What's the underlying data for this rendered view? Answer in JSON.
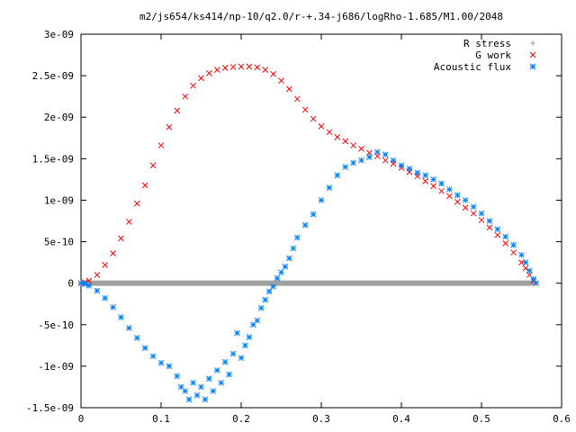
{
  "chart_data": {
    "type": "scatter",
    "title": "m2/js654/ks414/np-10/q2.0/r-+.34-j686/logRho-1.685/M1.00/2048",
    "xlabel": "",
    "ylabel": "",
    "xlim": [
      0,
      0.6
    ],
    "ylim": [
      -1.5e-09,
      3e-09
    ],
    "grid": false,
    "legend_position": "top-right",
    "x_ticks": [
      "0",
      "0.1",
      "0.2",
      "0.3",
      "0.4",
      "0.5",
      "0.6"
    ],
    "y_ticks": [
      "-1.5e-09",
      "-1e-09",
      "-5e-10",
      "0",
      "5e-10",
      "1e-09",
      "1.5e-09",
      "2e-09",
      "2.5e-09",
      "3e-09"
    ],
    "series": [
      {
        "name": "R stress",
        "marker": "plus",
        "color": "#a0a0a0",
        "points": [
          [
            0.0,
            0
          ],
          [
            0.05,
            0
          ],
          [
            0.1,
            0
          ],
          [
            0.15,
            0
          ],
          [
            0.2,
            0
          ],
          [
            0.25,
            0
          ],
          [
            0.3,
            0
          ],
          [
            0.35,
            0
          ],
          [
            0.4,
            0
          ],
          [
            0.45,
            0
          ],
          [
            0.5,
            0
          ],
          [
            0.55,
            0
          ],
          [
            0.565,
            0
          ]
        ]
      },
      {
        "name": "G work",
        "marker": "cross",
        "color": "#ff0000",
        "points": [
          [
            0.0,
            0
          ],
          [
            0.005,
            1e-11
          ],
          [
            0.01,
            3e-11
          ],
          [
            0.02,
            1e-10
          ],
          [
            0.03,
            2.2e-10
          ],
          [
            0.04,
            3.6e-10
          ],
          [
            0.05,
            5.4e-10
          ],
          [
            0.06,
            7.4e-10
          ],
          [
            0.07,
            9.6e-10
          ],
          [
            0.08,
            1.18e-09
          ],
          [
            0.09,
            1.42e-09
          ],
          [
            0.1,
            1.66e-09
          ],
          [
            0.11,
            1.88e-09
          ],
          [
            0.12,
            2.08e-09
          ],
          [
            0.13,
            2.25e-09
          ],
          [
            0.14,
            2.38e-09
          ],
          [
            0.15,
            2.47e-09
          ],
          [
            0.16,
            2.53e-09
          ],
          [
            0.17,
            2.57e-09
          ],
          [
            0.18,
            2.595e-09
          ],
          [
            0.19,
            2.605e-09
          ],
          [
            0.2,
            2.61e-09
          ],
          [
            0.21,
            2.61e-09
          ],
          [
            0.22,
            2.6e-09
          ],
          [
            0.23,
            2.57e-09
          ],
          [
            0.24,
            2.52e-09
          ],
          [
            0.25,
            2.44e-09
          ],
          [
            0.26,
            2.34e-09
          ],
          [
            0.27,
            2.22e-09
          ],
          [
            0.28,
            2.09e-09
          ],
          [
            0.29,
            1.98e-09
          ],
          [
            0.3,
            1.89e-09
          ],
          [
            0.31,
            1.82e-09
          ],
          [
            0.32,
            1.76e-09
          ],
          [
            0.33,
            1.71e-09
          ],
          [
            0.34,
            1.66e-09
          ],
          [
            0.35,
            1.62e-09
          ],
          [
            0.36,
            1.57e-09
          ],
          [
            0.37,
            1.53e-09
          ],
          [
            0.38,
            1.48e-09
          ],
          [
            0.39,
            1.44e-09
          ],
          [
            0.4,
            1.39e-09
          ],
          [
            0.41,
            1.34e-09
          ],
          [
            0.42,
            1.29e-09
          ],
          [
            0.43,
            1.23e-09
          ],
          [
            0.44,
            1.17e-09
          ],
          [
            0.45,
            1.11e-09
          ],
          [
            0.46,
            1.05e-09
          ],
          [
            0.47,
            9.8e-10
          ],
          [
            0.48,
            9.1e-10
          ],
          [
            0.49,
            8.4e-10
          ],
          [
            0.5,
            7.6e-10
          ],
          [
            0.51,
            6.7e-10
          ],
          [
            0.52,
            5.8e-10
          ],
          [
            0.53,
            4.8e-10
          ],
          [
            0.54,
            3.7e-10
          ],
          [
            0.55,
            2.5e-10
          ],
          [
            0.555,
            1.8e-10
          ],
          [
            0.56,
            1e-10
          ],
          [
            0.565,
            3e-11
          ],
          [
            0.568,
            0
          ]
        ]
      },
      {
        "name": "Acoustic flux",
        "marker": "star",
        "color": "#0080ff",
        "points": [
          [
            0.0,
            0
          ],
          [
            0.005,
            -1e-11
          ],
          [
            0.01,
            -3e-11
          ],
          [
            0.02,
            -9e-11
          ],
          [
            0.03,
            -1.8e-10
          ],
          [
            0.04,
            -2.9e-10
          ],
          [
            0.05,
            -4.1e-10
          ],
          [
            0.06,
            -5.4e-10
          ],
          [
            0.07,
            -6.6e-10
          ],
          [
            0.08,
            -7.8e-10
          ],
          [
            0.09,
            -8.8e-10
          ],
          [
            0.1,
            -9.6e-10
          ],
          [
            0.11,
            -1e-09
          ],
          [
            0.12,
            -1.12e-09
          ],
          [
            0.125,
            -1.25e-09
          ],
          [
            0.13,
            -1.3e-09
          ],
          [
            0.135,
            -1.4e-09
          ],
          [
            0.14,
            -1.2e-09
          ],
          [
            0.145,
            -1.35e-09
          ],
          [
            0.15,
            -1.25e-09
          ],
          [
            0.155,
            -1.4e-09
          ],
          [
            0.16,
            -1.15e-09
          ],
          [
            0.165,
            -1.3e-09
          ],
          [
            0.17,
            -1.05e-09
          ],
          [
            0.175,
            -1.2e-09
          ],
          [
            0.18,
            -9.5e-10
          ],
          [
            0.185,
            -1.1e-09
          ],
          [
            0.19,
            -8.5e-10
          ],
          [
            0.195,
            -6e-10
          ],
          [
            0.2,
            -9e-10
          ],
          [
            0.205,
            -7.5e-10
          ],
          [
            0.21,
            -6.5e-10
          ],
          [
            0.215,
            -5e-10
          ],
          [
            0.22,
            -4.5e-10
          ],
          [
            0.225,
            -3e-10
          ],
          [
            0.23,
            -2e-10
          ],
          [
            0.235,
            -1e-10
          ],
          [
            0.24,
            -4e-11
          ],
          [
            0.245,
            6e-11
          ],
          [
            0.25,
            1.3e-10
          ],
          [
            0.255,
            2e-10
          ],
          [
            0.26,
            3e-10
          ],
          [
            0.265,
            4.2e-10
          ],
          [
            0.27,
            5.5e-10
          ],
          [
            0.28,
            7e-10
          ],
          [
            0.29,
            8.3e-10
          ],
          [
            0.3,
            1e-09
          ],
          [
            0.31,
            1.15e-09
          ],
          [
            0.32,
            1.3e-09
          ],
          [
            0.33,
            1.4e-09
          ],
          [
            0.34,
            1.45e-09
          ],
          [
            0.35,
            1.48e-09
          ],
          [
            0.36,
            1.52e-09
          ],
          [
            0.37,
            1.58e-09
          ],
          [
            0.38,
            1.55e-09
          ],
          [
            0.39,
            1.48e-09
          ],
          [
            0.4,
            1.42e-09
          ],
          [
            0.41,
            1.38e-09
          ],
          [
            0.42,
            1.33e-09
          ],
          [
            0.43,
            1.3e-09
          ],
          [
            0.44,
            1.25e-09
          ],
          [
            0.45,
            1.2e-09
          ],
          [
            0.46,
            1.13e-09
          ],
          [
            0.47,
            1.06e-09
          ],
          [
            0.48,
            1e-09
          ],
          [
            0.49,
            9.2e-10
          ],
          [
            0.5,
            8.4e-10
          ],
          [
            0.51,
            7.5e-10
          ],
          [
            0.52,
            6.5e-10
          ],
          [
            0.53,
            5.6e-10
          ],
          [
            0.54,
            4.6e-10
          ],
          [
            0.55,
            3.4e-10
          ],
          [
            0.555,
            2.5e-10
          ],
          [
            0.56,
            1.5e-10
          ],
          [
            0.565,
            5e-11
          ],
          [
            0.568,
            0
          ]
        ]
      }
    ]
  }
}
